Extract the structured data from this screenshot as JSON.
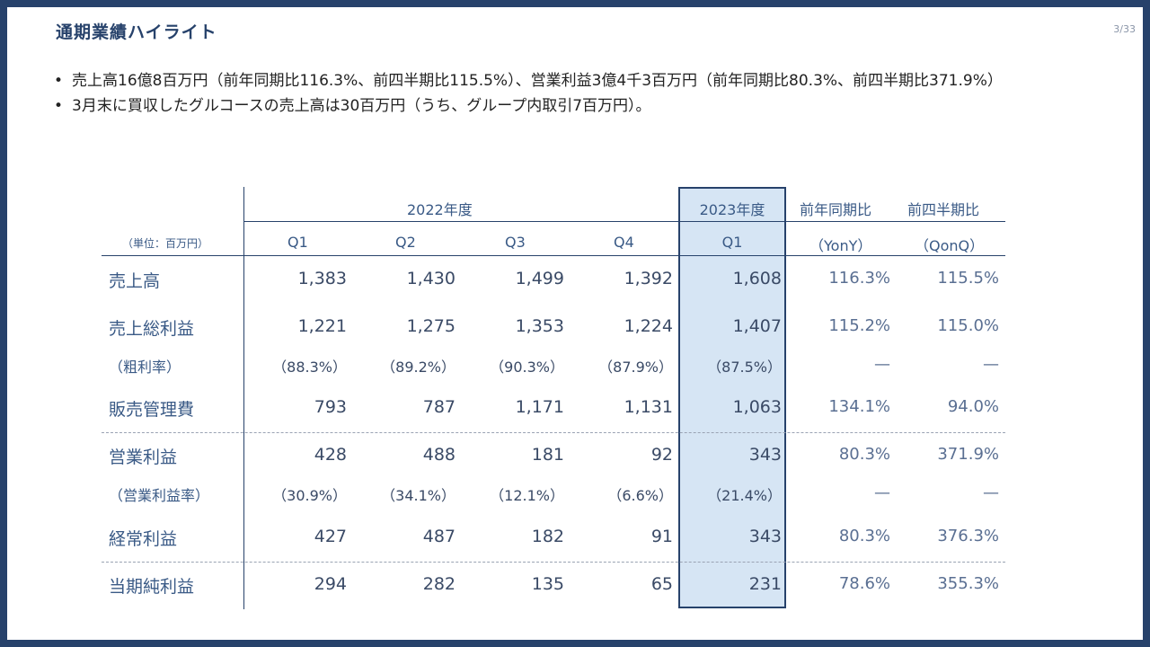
{
  "header": {
    "title": "通期業績ハイライト",
    "page": "3/33"
  },
  "bullets": [
    "売上高16億8百万円（前年同期比116.3%、前四半期比115.5%）、営業利益3億4千3百万円（前年同期比80.3%、前四半期比371.9%）",
    "3月末に買収したグルコースの売上高は30百万円（うち、グループ内取引7百万円）。"
  ],
  "bullet_mark": "•",
  "table": {
    "unit": "（単位：百万円）",
    "groups": {
      "fy2022": "2022年度",
      "fy2023": "2023年度",
      "yony": "前年同期比",
      "qonq": "前四半期比"
    },
    "columns": [
      "Q1",
      "Q2",
      "Q3",
      "Q4",
      "Q1",
      "（YonY）",
      "（QonQ）"
    ],
    "rows": [
      {
        "label": "売上高",
        "values": [
          "1,383",
          "1,430",
          "1,499",
          "1,392",
          "1,608",
          "116.3%",
          "115.5%"
        ]
      },
      {
        "label": "売上総利益",
        "values": [
          "1,221",
          "1,275",
          "1,353",
          "1,224",
          "1,407",
          "115.2%",
          "115.0%"
        ]
      },
      {
        "label": "（粗利率）",
        "values": [
          "（88.3%）",
          "（89.2%）",
          "（90.3%）",
          "（87.9%）",
          "（87.5%）",
          "—",
          "—"
        ]
      },
      {
        "label": "販売管理費",
        "values": [
          "793",
          "787",
          "1,171",
          "1,131",
          "1,063",
          "134.1%",
          "94.0%"
        ]
      },
      {
        "label": "営業利益",
        "values": [
          "428",
          "488",
          "181",
          "92",
          "343",
          "80.3%",
          "371.9%"
        ]
      },
      {
        "label": "（営業利益率）",
        "values": [
          "（30.9%）",
          "（34.1%）",
          "（12.1%）",
          "（6.6%）",
          "（21.4%）",
          "—",
          "—"
        ]
      },
      {
        "label": "経常利益",
        "values": [
          "427",
          "487",
          "182",
          "91",
          "343",
          "80.3%",
          "376.3%"
        ]
      },
      {
        "label": "当期純利益",
        "values": [
          "294",
          "282",
          "135",
          "65",
          "231",
          "78.6%",
          "355.3%"
        ]
      }
    ]
  }
}
